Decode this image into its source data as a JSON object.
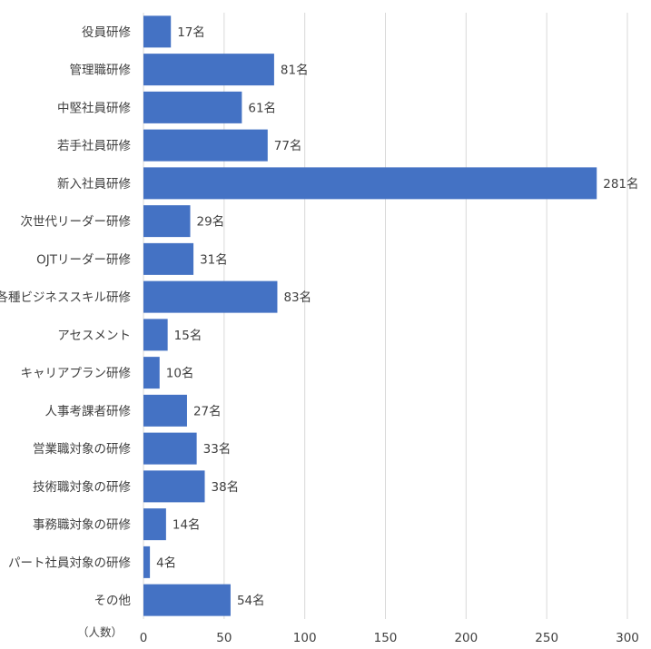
{
  "chart_data": {
    "type": "bar",
    "orientation": "horizontal",
    "categories": [
      "役員研修",
      "管理職研修",
      "中堅社員研修",
      "若手社員研修",
      "新入社員研修",
      "次世代リーダー研修",
      "OJTリーダー研修",
      "各種ビジネススキル研修",
      "アセスメント",
      "キャリアプラン研修",
      "人事考課者研修",
      "営業職対象の研修",
      "技術職対象の研修",
      "事務職対象の研修",
      "パート社員対象の研修",
      "その他"
    ],
    "values": [
      17,
      81,
      61,
      77,
      281,
      29,
      31,
      83,
      15,
      10,
      27,
      33,
      38,
      14,
      4,
      54
    ],
    "value_suffix": "名",
    "xlabel": "（人数）",
    "xlim": [
      0,
      300
    ],
    "xticks": [
      0,
      50,
      100,
      150,
      200,
      250,
      300
    ],
    "grid": "vertical",
    "bar_color": "#4472C4",
    "grid_color": "#D9D9D9"
  }
}
